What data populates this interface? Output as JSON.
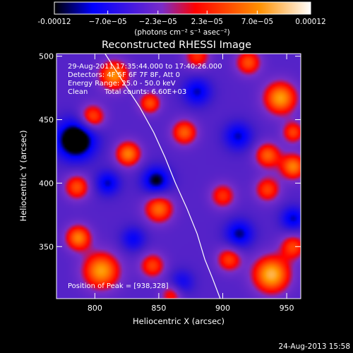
{
  "chart_data": {
    "type": "heatmap",
    "title": "Reconstructed RHESSI Image",
    "xlabel": "Heliocentric X (arcsec)",
    "ylabel": "Heliocentric Y (arcsec)",
    "xlim": [
      770,
      961
    ],
    "ylim": [
      309,
      502
    ],
    "x_ticks": [
      "800",
      "850",
      "900",
      "950"
    ],
    "x_tick_values": [
      800,
      850,
      900,
      950
    ],
    "y_ticks": [
      "350",
      "400",
      "450",
      "500"
    ],
    "y_tick_values": [
      350,
      400,
      450,
      500
    ],
    "colorbar": {
      "range": [
        -0.00012,
        0.00012
      ],
      "tick_labels": [
        "-0.00012",
        "−7.0e−05",
        "−2.3e−05",
        "2.3e−05",
        "7.0e−05",
        "0.00012"
      ],
      "tick_values": [
        -0.00012,
        -7e-05,
        -2.3e-05,
        2.3e-05,
        7e-05,
        0.00012
      ],
      "units": "(photons cm⁻² s⁻¹ asec⁻²)",
      "colors": [
        "#000000",
        "#0000ff",
        "#7a2cc8",
        "#ff0000",
        "#ff9000",
        "#ffffff"
      ]
    },
    "annotations": [
      "29-Aug-2011 17:35:44.000 to 17:40:26.000",
      "Detectors: 4F 5F 6F 7F 8F, Att 0",
      "Energy Range: 25.0 - 50.0 keV",
      "Clean",
      "Total counts: 6.60E+03"
    ],
    "peak_label": "Position of Peak = [938,328]",
    "peak": [
      938,
      328
    ],
    "limb_curve": [
      [
        808,
        502
      ],
      [
        822,
        480
      ],
      [
        835,
        460
      ],
      [
        846,
        440
      ],
      [
        855,
        420
      ],
      [
        863,
        400
      ],
      [
        872,
        380
      ],
      [
        880,
        360
      ],
      [
        886,
        340
      ],
      [
        892,
        325
      ],
      [
        898,
        309
      ]
    ],
    "features": [
      {
        "x": 785,
        "y": 434,
        "v": -1.0,
        "s": 11
      },
      {
        "x": 848,
        "y": 402,
        "v": -0.7,
        "s": 8
      },
      {
        "x": 810,
        "y": 400,
        "v": -0.55,
        "s": 7
      },
      {
        "x": 880,
        "y": 472,
        "v": -0.55,
        "s": 8
      },
      {
        "x": 912,
        "y": 437,
        "v": -0.55,
        "s": 8
      },
      {
        "x": 913,
        "y": 360,
        "v": -0.6,
        "s": 8
      },
      {
        "x": 830,
        "y": 356,
        "v": -0.45,
        "s": 7
      },
      {
        "x": 955,
        "y": 372,
        "v": -0.55,
        "s": 7
      },
      {
        "x": 868,
        "y": 322,
        "v": -0.4,
        "s": 7
      },
      {
        "x": 938,
        "y": 328,
        "v": 1.0,
        "s": 10
      },
      {
        "x": 805,
        "y": 331,
        "v": 0.9,
        "s": 10
      },
      {
        "x": 945,
        "y": 467,
        "v": 0.9,
        "s": 9
      },
      {
        "x": 815,
        "y": 485,
        "v": 0.85,
        "s": 8
      },
      {
        "x": 843,
        "y": 463,
        "v": 0.65,
        "s": 6
      },
      {
        "x": 798,
        "y": 452,
        "v": 0.7,
        "s": 7
      },
      {
        "x": 870,
        "y": 440,
        "v": 0.7,
        "s": 7
      },
      {
        "x": 826,
        "y": 423,
        "v": 0.8,
        "s": 7
      },
      {
        "x": 786,
        "y": 397,
        "v": 0.65,
        "s": 7
      },
      {
        "x": 850,
        "y": 380,
        "v": 0.75,
        "s": 8
      },
      {
        "x": 935,
        "y": 422,
        "v": 0.7,
        "s": 7
      },
      {
        "x": 955,
        "y": 413,
        "v": 0.8,
        "s": 7
      },
      {
        "x": 955,
        "y": 440,
        "v": 0.6,
        "s": 6
      },
      {
        "x": 787,
        "y": 357,
        "v": 0.8,
        "s": 7
      },
      {
        "x": 845,
        "y": 335,
        "v": 0.6,
        "s": 7
      },
      {
        "x": 900,
        "y": 390,
        "v": 0.55,
        "s": 7
      },
      {
        "x": 935,
        "y": 395,
        "v": 0.6,
        "s": 7
      },
      {
        "x": 955,
        "y": 350,
        "v": 0.6,
        "s": 7
      },
      {
        "x": 905,
        "y": 340,
        "v": 0.6,
        "s": 7
      },
      {
        "x": 880,
        "y": 500,
        "v": 0.55,
        "s": 7
      },
      {
        "x": 920,
        "y": 495,
        "v": 0.65,
        "s": 7
      },
      {
        "x": 860,
        "y": 312,
        "v": 0.5,
        "s": 6
      }
    ]
  },
  "footer_timestamp": "24-Aug-2013 15:58"
}
